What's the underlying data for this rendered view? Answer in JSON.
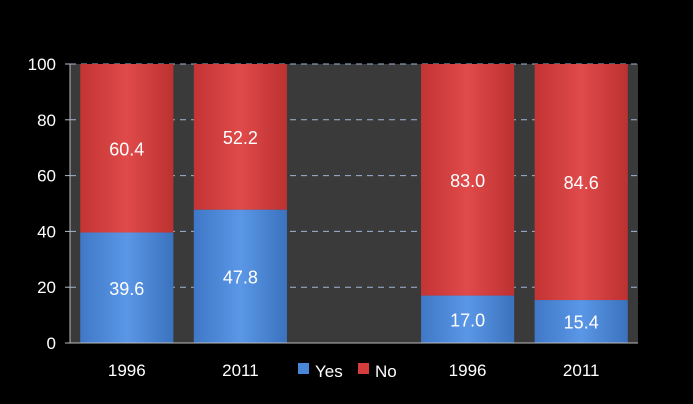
{
  "chart_data": {
    "type": "bar",
    "stacked": true,
    "categories": [
      "1996",
      "2011",
      "",
      "1996",
      "2011"
    ],
    "series": [
      {
        "name": "Yes",
        "values": [
          39.6,
          47.8,
          null,
          17.0,
          15.4
        ],
        "labels": [
          "39.6",
          "47.8",
          "",
          "17.0",
          "15.4"
        ]
      },
      {
        "name": "No",
        "values": [
          60.4,
          52.2,
          null,
          83.0,
          84.6
        ],
        "labels": [
          "60.4",
          "52.2",
          "",
          "83.0",
          "84.6"
        ]
      }
    ],
    "yticks": [
      "0",
      "20",
      "40",
      "60",
      "80",
      "100"
    ],
    "ylim": [
      0,
      100
    ],
    "grid": true,
    "legend": "bottom-center",
    "colors": {
      "Yes": "#4a86d8",
      "No": "#d53d3d",
      "plot_bg": "#3a3a3a",
      "grid": "#9fb6d6"
    }
  }
}
